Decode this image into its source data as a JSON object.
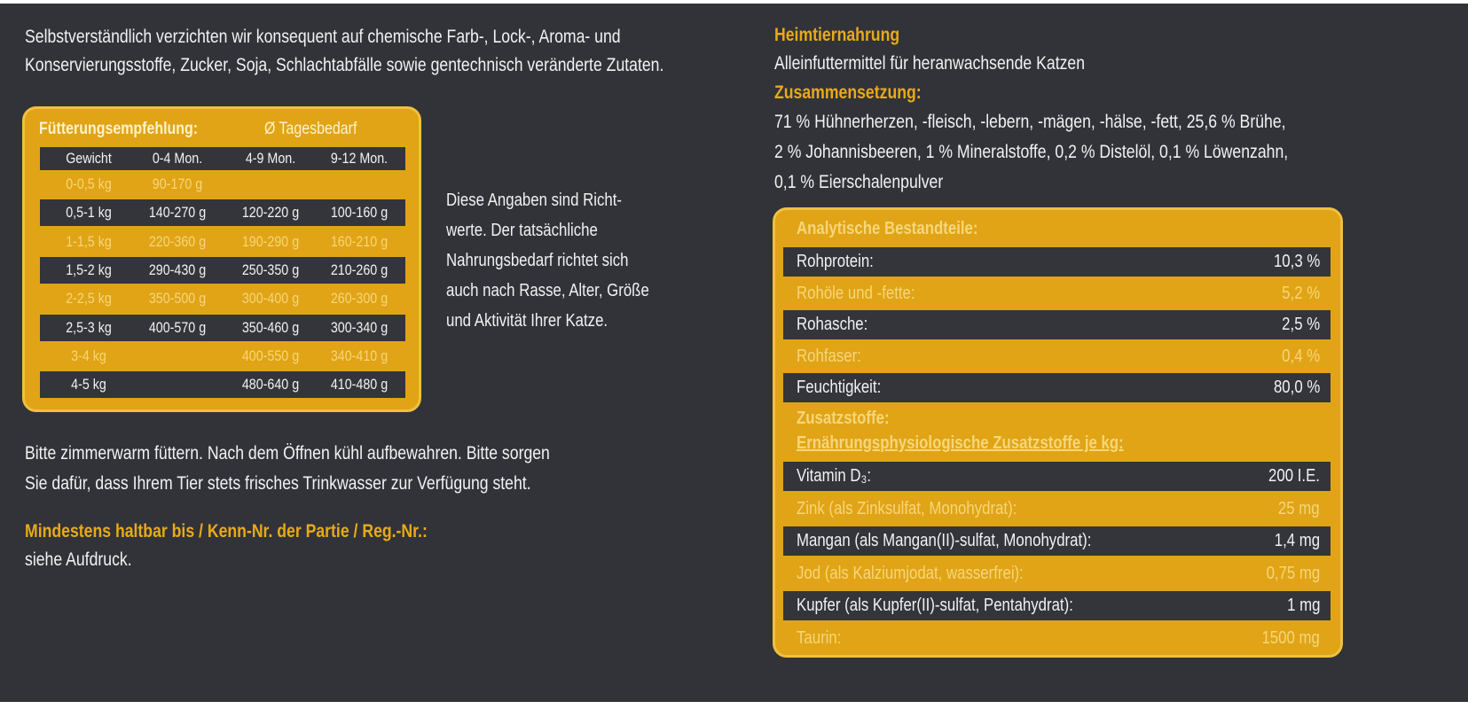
{
  "left": {
    "intro": [
      "Selbstverständlich verzichten wir konsequent auf chemische Farb-, Lock-, Aroma- und",
      "Konservierungsstoffe, Zucker, Soja, Schlachtabfälle sowie gentechnisch veränderte Zutaten."
    ],
    "feeding": {
      "title": "Fütterungsempfehlung:",
      "subtitle": "Ø Tagesbedarf",
      "header": [
        "Gewicht",
        "0-4 Mon.",
        "4-9 Mon.",
        "9-12 Mon."
      ],
      "rows": [
        [
          "0-0,5 kg",
          "90-170 g",
          null,
          null
        ],
        [
          "0,5-1 kg",
          "140-270 g",
          "120-220 g",
          "100-160 g"
        ],
        [
          "1-1,5 kg",
          "220-360 g",
          "190-290 g",
          "160-210 g"
        ],
        [
          "1,5-2 kg",
          "290-430 g",
          "250-350 g",
          "210-260 g"
        ],
        [
          "2-2,5 kg",
          "350-500 g",
          "300-400 g",
          "260-300 g"
        ],
        [
          "2,5-3 kg",
          "400-570 g",
          "350-460 g",
          "300-340 g"
        ],
        [
          "3-4 kg",
          null,
          "400-550 g",
          "340-410 g"
        ],
        [
          "4-5 kg",
          null,
          "480-640 g",
          "410-480 g"
        ]
      ]
    },
    "note": [
      "Diese Angaben sind Richt-",
      "werte. Der tatsächliche",
      "Nahrungsbedarf richtet sich",
      "auch nach Rasse, Alter, Größe",
      "und Aktivität Ihrer Katze."
    ],
    "storage": [
      "Bitte zimmerwarm füttern. Nach dem Öffnen kühl aufbewahren. Bitte sorgen",
      "Sie dafür, dass Ihrem Tier stets frisches Trinkwasser zur Verfügung steht."
    ],
    "best_before": {
      "heading": "Mindestens haltbar bis / Kenn-Nr. der Partie / Reg.-Nr.:",
      "text": "siehe Aufdruck."
    }
  },
  "right": {
    "product_type": "Heimtiernahrung",
    "description": "Alleinfuttermittel für heranwachsende Katzen",
    "composition": {
      "heading": "Zusammensetzung:",
      "lines": [
        "71 % Hühnerherzen, -fleisch, -lebern, -mägen, -hälse, -fett, 25,6 % Brühe,",
        "2 % Johannisbeeren, 1 % Mineralstoffe, 0,2 % Distelöl, 0,1 % Löwenzahn,",
        "0,1 % Eierschalenpulver"
      ]
    },
    "analysis": {
      "title": "Analytische Bestandteile:",
      "rows": [
        [
          "Rohprotein:",
          "10,3 %"
        ],
        [
          "Rohöle und -fette:",
          "5,2 %"
        ],
        [
          "Rohasche:",
          "2,5 %"
        ],
        [
          "Rohfaser:",
          "0,4 %"
        ],
        [
          "Feuchtigkeit:",
          "80,0 %"
        ]
      ]
    },
    "additives": {
      "heading": "Zusatzstoffe:",
      "subheading": "Ernährungsphysiologische Zusatzstoffe je kg:",
      "rows": [
        [
          "Vitamin D₃:",
          "200 I.E."
        ],
        [
          "Zink (als Zinksulfat, Monohydrat):",
          "25 mg"
        ],
        [
          "Mangan (als Mangan(II)-sulfat, Monohydrat):",
          "1,4 mg"
        ],
        [
          "Jod (als Kalziumjodat, wasserfrei):",
          "0,75 mg"
        ],
        [
          "Kupfer (als Kupfer(II)-sulfat, Pentahydrat):",
          "1 mg"
        ],
        [
          "Taurin:",
          "1500 mg"
        ]
      ]
    }
  }
}
